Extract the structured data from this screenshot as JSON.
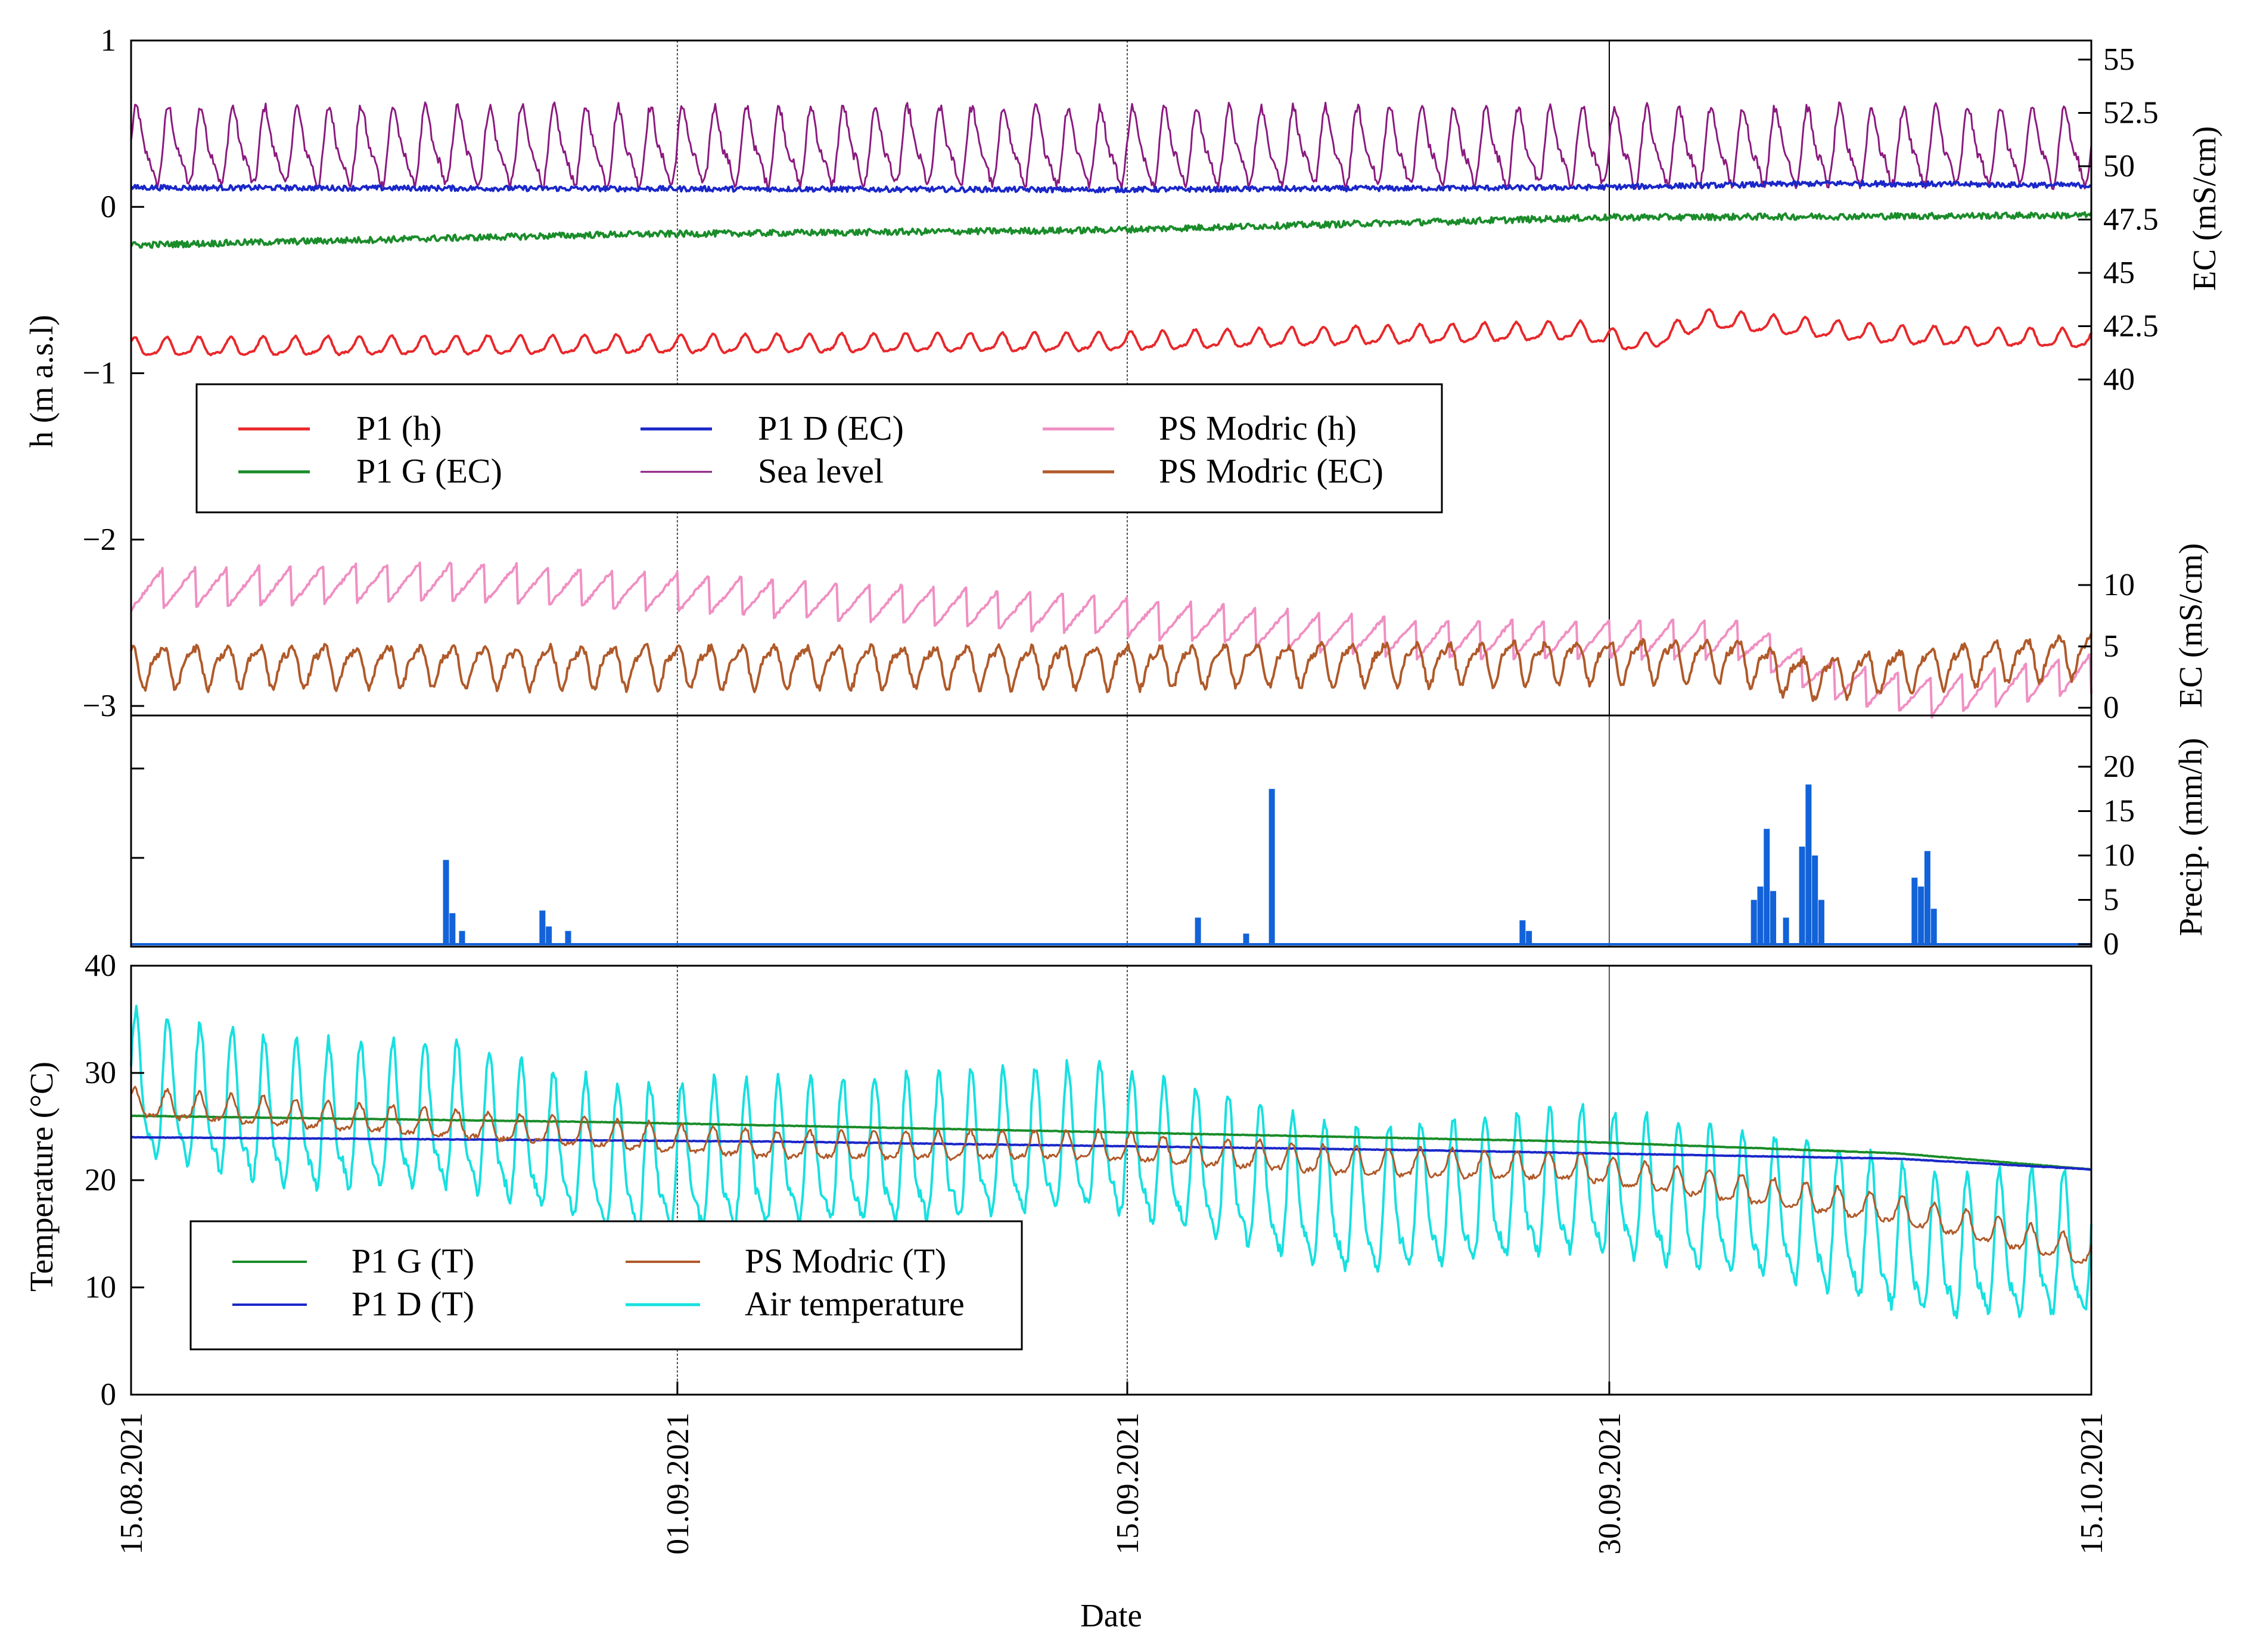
{
  "chart_data": [
    {
      "type": "line",
      "panel": "top",
      "xlabel": "",
      "ylabel_left": "h (m a.s.l)",
      "ylabel_right_upper": "EC (mS/cm)",
      "ylabel_right_lower": "EC (mS/cm)",
      "x_range": [
        "15.08.2021",
        "15.10.2021"
      ],
      "ylim_left": [
        -3,
        1
      ],
      "yticks_left": [
        1,
        0,
        -1,
        -2,
        -3
      ],
      "ylim_right_upper": [
        40,
        55
      ],
      "yticks_right_upper": [
        55,
        52.5,
        50,
        47.5,
        45,
        42.5,
        40
      ],
      "ylim_right_lower": [
        0,
        10
      ],
      "yticks_right_lower": [
        10,
        5,
        0
      ],
      "legend_position": "center-left",
      "legend_columns": 3,
      "series": [
        {
          "name": "P1 (h)",
          "color": "#e8282b",
          "axis": "left",
          "approx_level": [
            [
              0,
              -0.85
            ],
            [
              30,
              -0.82
            ],
            [
              45,
              -0.75
            ],
            [
              47,
              -0.83
            ],
            [
              49,
              -0.68
            ],
            [
              55,
              -0.78
            ],
            [
              61,
              -0.8
            ]
          ],
          "daily_amplitude": 0.05
        },
        {
          "name": "P1 G (EC)",
          "color": "#1a8c2a",
          "axis": "right_upper",
          "approx_level": [
            [
              0,
              46.3
            ],
            [
              15,
              46.8
            ],
            [
              30,
              47.0
            ],
            [
              46,
              47.6
            ],
            [
              61,
              47.7
            ]
          ]
        },
        {
          "name": "P1 D (EC)",
          "color": "#1a27c9",
          "axis": "right_upper",
          "approx_level": [
            [
              0,
              49.0
            ],
            [
              30,
              48.9
            ],
            [
              45,
              49.0
            ],
            [
              53,
              49.2
            ],
            [
              61,
              49.1
            ]
          ]
        },
        {
          "name": "Sea level",
          "color": "#8b1a7f",
          "axis": "left",
          "approx_level": [
            [
              0,
              0.35
            ],
            [
              15,
              0.35
            ],
            [
              30,
              0.35
            ],
            [
              61,
              0.35
            ]
          ],
          "daily_amplitude": 0.2
        },
        {
          "name": "PS Modric (h)",
          "color": "#f08fc3",
          "axis": "left",
          "approx_level": [
            [
              0,
              -2.3
            ],
            [
              10,
              -2.25
            ],
            [
              20,
              -2.35
            ],
            [
              30,
              -2.45
            ],
            [
              40,
              -2.6
            ],
            [
              50,
              -2.6
            ],
            [
              53,
              -2.85
            ],
            [
              56,
              -2.95
            ],
            [
              61,
              -2.8
            ]
          ],
          "daily_amplitude": 0.12
        },
        {
          "name": "PS Modric (EC)",
          "color": "#b05a2a",
          "axis": "right_lower",
          "approx_level": [
            [
              0,
              3.5
            ],
            [
              15,
              3.5
            ],
            [
              30,
              3.5
            ],
            [
              50,
              4.0
            ],
            [
              52,
              2.5
            ],
            [
              61,
              4.5
            ]
          ],
          "daily_amplitude": 1.5
        }
      ]
    },
    {
      "type": "bar",
      "panel": "middle",
      "xlabel": "",
      "ylabel_right": "Precip. (mm/h)",
      "ylim": [
        0,
        25
      ],
      "yticks": [
        20,
        15,
        10,
        5,
        0
      ],
      "series": [
        {
          "name": "",
          "color": "#1262d9",
          "points": [
            [
              9.8,
              9.5
            ],
            [
              10.0,
              3.5
            ],
            [
              10.3,
              1.5
            ],
            [
              12.8,
              3.8
            ],
            [
              13.0,
              2.0
            ],
            [
              13.6,
              1.5
            ],
            [
              33.2,
              3.0
            ],
            [
              34.7,
              1.2
            ],
            [
              35.5,
              17.5
            ],
            [
              43.3,
              2.7
            ],
            [
              43.5,
              1.5
            ],
            [
              50.5,
              5.0
            ],
            [
              50.7,
              6.5
            ],
            [
              50.9,
              13.0
            ],
            [
              51.1,
              6.0
            ],
            [
              51.5,
              3.0
            ],
            [
              52.0,
              11.0
            ],
            [
              52.2,
              18.0
            ],
            [
              52.4,
              10.0
            ],
            [
              52.6,
              5.0
            ],
            [
              55.5,
              7.5
            ],
            [
              55.7,
              6.5
            ],
            [
              55.9,
              10.5
            ],
            [
              56.1,
              4.0
            ]
          ]
        }
      ]
    },
    {
      "type": "line",
      "panel": "bottom",
      "xlabel": "Date",
      "ylabel": "Temperature (°C)",
      "ylim": [
        0,
        40
      ],
      "yticks": [
        40,
        30,
        20,
        10,
        0
      ],
      "xticks": [
        "15.08.2021",
        "01.09.2021",
        "15.09.2021",
        "30.09.2021",
        "15.10.2021"
      ],
      "xtick_days": [
        0,
        17,
        31,
        46,
        61
      ],
      "legend_position": "center-left",
      "legend_columns": 2,
      "series": [
        {
          "name": "P1 G (T)",
          "color": "#1a8c2a",
          "approx_level": [
            [
              0,
              26.0
            ],
            [
              15,
              25.4
            ],
            [
              30,
              24.5
            ],
            [
              45,
              23.6
            ],
            [
              55,
              22.5
            ],
            [
              61,
              21.0
            ]
          ]
        },
        {
          "name": "P1 D (T)",
          "color": "#1a27c9",
          "approx_level": [
            [
              0,
              24.0
            ],
            [
              20,
              23.6
            ],
            [
              40,
              22.8
            ],
            [
              55,
              22.0
            ],
            [
              61,
              21.0
            ]
          ]
        },
        {
          "name": "PS Modric (T)",
          "color": "#b05a2a",
          "approx_level": [
            [
              0,
              27.0
            ],
            [
              10,
              25.0
            ],
            [
              20,
              23.0
            ],
            [
              30,
              23.0
            ],
            [
              38,
              21.5
            ],
            [
              45,
              21.0
            ],
            [
              55,
              17.0
            ],
            [
              61,
              13.0
            ]
          ],
          "daily_amplitude": 1.2
        },
        {
          "name": "Air temperature",
          "color": "#17e0e0",
          "approx_level": [
            [
              0,
              28.0
            ],
            [
              5,
              25.0
            ],
            [
              10,
              25.0
            ],
            [
              15,
              21.0
            ],
            [
              25,
              22.0
            ],
            [
              30,
              23.0
            ],
            [
              38,
              17.0
            ],
            [
              45,
              19.0
            ],
            [
              52,
              16.0
            ],
            [
              56,
              13.0
            ],
            [
              61,
              13.0
            ]
          ],
          "daily_amplitude": 6.0
        }
      ]
    }
  ]
}
